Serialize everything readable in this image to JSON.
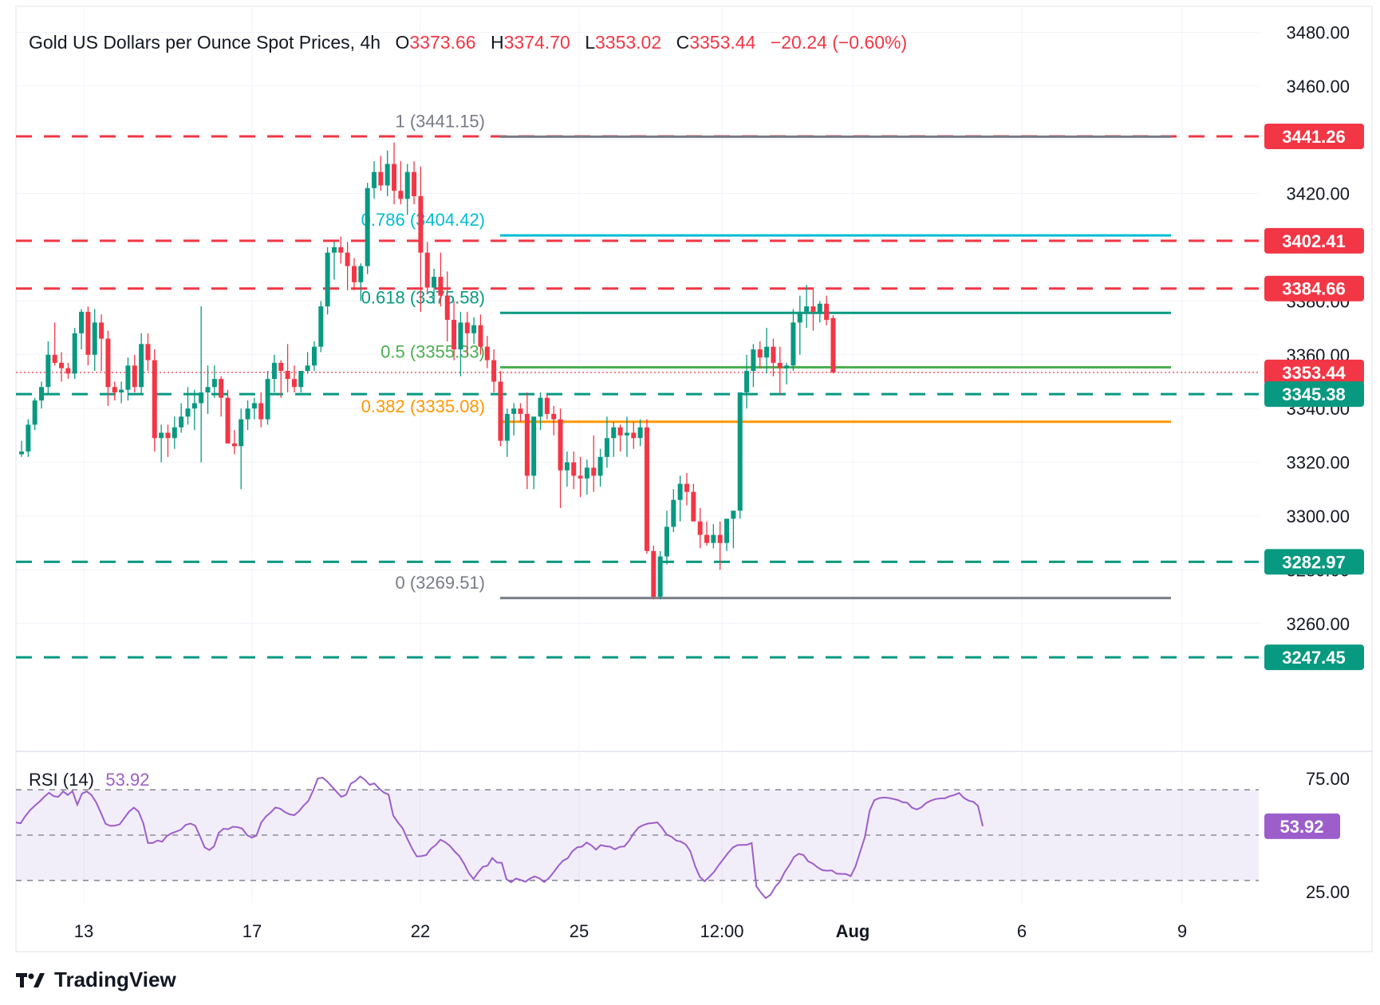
{
  "title": "Gold US Dollars per Ounce Spot Prices, 4h",
  "ohlc": {
    "o_label": "O",
    "o": "3373.66",
    "h_label": "H",
    "h": "3374.70",
    "l_label": "L",
    "l": "3353.02",
    "c_label": "C",
    "c": "3353.44",
    "change": "−20.24 (−0.60%)"
  },
  "colors": {
    "up": "#089981",
    "down": "#f23645",
    "resistance": "#f23645",
    "support": "#089981",
    "current_price": "#f23645",
    "rsi_line": "#9c5ecb",
    "fib_1": "#787b86",
    "fib_0786": "#00bcd4",
    "fib_0618": "#089981",
    "fib_05": "#4caf50",
    "fib_0382": "#ff9800",
    "fib_0": "#787b86",
    "grid": "#f0f3fa"
  },
  "chart_data": [
    {
      "type": "candlestick",
      "title": "Gold US Dollars per Ounce Spot Prices, 4h",
      "timeframe": "4h",
      "ylim": [
        3240,
        3490
      ],
      "y_ticks": [
        "3480.00",
        "3460.00",
        "3420.00",
        "3380.00",
        "3360.00",
        "3340.00",
        "3320.00",
        "3300.00",
        "3280.00",
        "3260.00"
      ],
      "x_ticks": [
        "13",
        "17",
        "22",
        "25",
        "12:00",
        "Aug",
        "6",
        "9"
      ],
      "horizontal_levels": [
        {
          "price": 3441.26,
          "label": "3441.26",
          "style": "dashed",
          "role": "resistance"
        },
        {
          "price": 3402.41,
          "label": "3402.41",
          "style": "dashed",
          "role": "resistance"
        },
        {
          "price": 3384.66,
          "label": "3384.66",
          "style": "dashed",
          "role": "resistance"
        },
        {
          "price": 3353.44,
          "label": "3353.44",
          "style": "dotted",
          "role": "current_price"
        },
        {
          "price": 3345.38,
          "label": "3345.38",
          "style": "dashed",
          "role": "support"
        },
        {
          "price": 3282.97,
          "label": "3282.97",
          "style": "dashed",
          "role": "support"
        },
        {
          "price": 3247.45,
          "label": "3247.45",
          "style": "dashed",
          "role": "support"
        }
      ],
      "fibonacci_retracement": [
        {
          "label": "1 (3441.15)",
          "price": 3441.15,
          "color_key": "fib_1"
        },
        {
          "label": "0.786 (3404.42)",
          "price": 3404.42,
          "color_key": "fib_0786"
        },
        {
          "label": "0.618 (3375.58)",
          "price": 3375.58,
          "color_key": "fib_0618"
        },
        {
          "label": "0.5 (3355.33)",
          "price": 3355.33,
          "color_key": "fib_05"
        },
        {
          "label": "0.382 (3335.08)",
          "price": 3335.08,
          "color_key": "fib_0382"
        },
        {
          "label": "0 (3269.51)",
          "price": 3269.51,
          "color_key": "fib_0"
        }
      ],
      "candles": [
        [
          3323,
          3328,
          3322,
          3324
        ],
        [
          3324,
          3336,
          3322,
          3334
        ],
        [
          3334,
          3344,
          3332,
          3343
        ],
        [
          3343,
          3350,
          3340,
          3348
        ],
        [
          3348,
          3365,
          3345,
          3360
        ],
        [
          3360,
          3372,
          3356,
          3357
        ],
        [
          3357,
          3361,
          3350,
          3355
        ],
        [
          3355,
          3357,
          3351,
          3353
        ],
        [
          3353,
          3370,
          3351,
          3368
        ],
        [
          3368,
          3377,
          3362,
          3376
        ],
        [
          3376,
          3378,
          3356,
          3360
        ],
        [
          3360,
          3377,
          3354,
          3372
        ],
        [
          3372,
          3375,
          3354,
          3366
        ],
        [
          3366,
          3369,
          3341,
          3348
        ],
        [
          3348,
          3350,
          3343,
          3346
        ],
        [
          3346,
          3350,
          3342,
          3347
        ],
        [
          3347,
          3359,
          3343,
          3356
        ],
        [
          3356,
          3360,
          3346,
          3348
        ],
        [
          3348,
          3368,
          3345,
          3364
        ],
        [
          3364,
          3368,
          3354,
          3358
        ],
        [
          3358,
          3362,
          3324,
          3329
        ],
        [
          3329,
          3334,
          3320,
          3331
        ],
        [
          3331,
          3334,
          3322,
          3329
        ],
        [
          3329,
          3337,
          3325,
          3333
        ],
        [
          3333,
          3342,
          3331,
          3337
        ],
        [
          3337,
          3348,
          3334,
          3340
        ],
        [
          3340,
          3347,
          3332,
          3342
        ],
        [
          3342,
          3378,
          3320,
          3346
        ],
        [
          3346,
          3356,
          3338,
          3348
        ],
        [
          3348,
          3356,
          3344,
          3351
        ],
        [
          3351,
          3352,
          3337,
          3344
        ],
        [
          3344,
          3347,
          3328,
          3327
        ],
        [
          3327,
          3332,
          3323,
          3326
        ],
        [
          3326,
          3340,
          3310,
          3336
        ],
        [
          3336,
          3343,
          3332,
          3340
        ],
        [
          3340,
          3344,
          3336,
          3342
        ],
        [
          3342,
          3346,
          3333,
          3336
        ],
        [
          3336,
          3354,
          3334,
          3351
        ],
        [
          3351,
          3360,
          3346,
          3357
        ],
        [
          3357,
          3358,
          3344,
          3354
        ],
        [
          3354,
          3364,
          3346,
          3351
        ],
        [
          3351,
          3356,
          3346,
          3348
        ],
        [
          3348,
          3353,
          3346,
          3354
        ],
        [
          3354,
          3361,
          3353,
          3356
        ],
        [
          3356,
          3365,
          3354,
          3363
        ],
        [
          3363,
          3380,
          3361,
          3378
        ],
        [
          3378,
          3400,
          3375,
          3398
        ],
        [
          3398,
          3402,
          3388,
          3400
        ],
        [
          3400,
          3404,
          3394,
          3398
        ],
        [
          3398,
          3402,
          3384,
          3393
        ],
        [
          3393,
          3396,
          3384,
          3387
        ],
        [
          3387,
          3394,
          3380,
          3393
        ],
        [
          3393,
          3424,
          3390,
          3422
        ],
        [
          3422,
          3432,
          3418,
          3428
        ],
        [
          3428,
          3434,
          3421,
          3423
        ],
        [
          3423,
          3436,
          3419,
          3431
        ],
        [
          3431,
          3439,
          3416,
          3421
        ],
        [
          3421,
          3432,
          3416,
          3418
        ],
        [
          3418,
          3431,
          3412,
          3428
        ],
        [
          3428,
          3432,
          3416,
          3419
        ],
        [
          3419,
          3430,
          3376,
          3398
        ],
        [
          3398,
          3402,
          3383,
          3385
        ],
        [
          3385,
          3392,
          3379,
          3389
        ],
        [
          3389,
          3398,
          3378,
          3382
        ],
        [
          3382,
          3391,
          3365,
          3373
        ],
        [
          3373,
          3380,
          3358,
          3362
        ],
        [
          3362,
          3376,
          3352,
          3372
        ],
        [
          3372,
          3376,
          3360,
          3368
        ],
        [
          3368,
          3374,
          3364,
          3371
        ],
        [
          3371,
          3375,
          3360,
          3363
        ],
        [
          3363,
          3367,
          3355,
          3358
        ],
        [
          3358,
          3362,
          3346,
          3350
        ],
        [
          3350,
          3354,
          3326,
          3328
        ],
        [
          3328,
          3340,
          3322,
          3338
        ],
        [
          3338,
          3342,
          3330,
          3340
        ],
        [
          3340,
          3342,
          3335,
          3338
        ],
        [
          3338,
          3346,
          3310,
          3315
        ],
        [
          3315,
          3335,
          3310,
          3337
        ],
        [
          3337,
          3346,
          3332,
          3344
        ],
        [
          3344,
          3345,
          3336,
          3338
        ],
        [
          3338,
          3341,
          3330,
          3336
        ],
        [
          3336,
          3340,
          3303,
          3317
        ],
        [
          3317,
          3324,
          3311,
          3320
        ],
        [
          3320,
          3324,
          3310,
          3315
        ],
        [
          3315,
          3322,
          3307,
          3314
        ],
        [
          3314,
          3321,
          3308,
          3318
        ],
        [
          3318,
          3330,
          3309,
          3315
        ],
        [
          3315,
          3325,
          3311,
          3322
        ],
        [
          3322,
          3337,
          3318,
          3329
        ],
        [
          3329,
          3335,
          3322,
          3333
        ],
        [
          3333,
          3334,
          3324,
          3330
        ],
        [
          3330,
          3337,
          3322,
          3331
        ],
        [
          3331,
          3335,
          3325,
          3329
        ],
        [
          3329,
          3336,
          3326,
          3333
        ],
        [
          3333,
          3336,
          3286,
          3287
        ],
        [
          3287,
          3289,
          3269,
          3270
        ],
        [
          3270,
          3287,
          3269,
          3285
        ],
        [
          3285,
          3302,
          3282,
          3296
        ],
        [
          3296,
          3310,
          3294,
          3306
        ],
        [
          3306,
          3315,
          3298,
          3312
        ],
        [
          3312,
          3316,
          3304,
          3309
        ],
        [
          3309,
          3312,
          3299,
          3298
        ],
        [
          3298,
          3303,
          3288,
          3293
        ],
        [
          3293,
          3298,
          3289,
          3290
        ],
        [
          3290,
          3297,
          3288,
          3293
        ],
        [
          3293,
          3298,
          3280,
          3290
        ],
        [
          3290,
          3299,
          3287,
          3299
        ],
        [
          3299,
          3302,
          3288,
          3302
        ],
        [
          3302,
          3345,
          3299,
          3346
        ],
        [
          3346,
          3360,
          3340,
          3354
        ],
        [
          3354,
          3364,
          3348,
          3362
        ],
        [
          3362,
          3365,
          3355,
          3359
        ],
        [
          3359,
          3370,
          3353,
          3363
        ],
        [
          3363,
          3366,
          3352,
          3357
        ],
        [
          3357,
          3363,
          3345,
          3355
        ],
        [
          3355,
          3357,
          3349,
          3356
        ],
        [
          3356,
          3377,
          3354,
          3372
        ],
        [
          3372,
          3382,
          3360,
          3376
        ],
        [
          3376,
          3386,
          3370,
          3378
        ],
        [
          3378,
          3385,
          3369,
          3376
        ],
        [
          3376,
          3380,
          3372,
          3379
        ],
        [
          3379,
          3382,
          3371,
          3373
        ],
        [
          3373.66,
          3374.7,
          3353.02,
          3353.44
        ]
      ]
    },
    {
      "type": "line",
      "title": "RSI (14)",
      "series": [
        {
          "name": "RSI (14)",
          "last": 53.92
        }
      ],
      "ylim": [
        20,
        80
      ],
      "y_ticks": [
        "75.00",
        "25.00"
      ],
      "bands": [
        70,
        50,
        30
      ],
      "values": [
        55.6,
        55.2,
        58.4,
        61.0,
        63.0,
        64.8,
        66.9,
        68.7,
        67.2,
        66.9,
        69.3,
        67.7,
        69.4,
        63.4,
        68.3,
        69.3,
        67.7,
        64.5,
        59.9,
        55.0,
        54.1,
        54.2,
        54.8,
        57.6,
        60.4,
        62.1,
        60.4,
        55.3,
        46.5,
        46.5,
        47.6,
        47.1,
        49.6,
        50.8,
        51.6,
        52.4,
        54.5,
        55.1,
        54.2,
        49.6,
        44.6,
        43.4,
        45.0,
        51.0,
        52.8,
        52.6,
        53.7,
        53.5,
        52.8,
        50.0,
        48.9,
        49.8,
        55.5,
        58.2,
        60.0,
        62.2,
        61.7,
        60.2,
        59.2,
        58.8,
        60.5,
        63.0,
        65.1,
        69.6,
        75.0,
        75.4,
        73.7,
        71.4,
        69.1,
        66.9,
        67.8,
        72.7,
        73.9,
        75.9,
        74.4,
        72.2,
        72.8,
        70.6,
        68.8,
        67.9,
        58.6,
        55.6,
        53.0,
        48.3,
        44.1,
        40.6,
        40.7,
        41.2,
        44.0,
        45.6,
        48.0,
        46.9,
        45.3,
        42.8,
        40.8,
        37.4,
        33.3,
        30.6,
        33.5,
        36.0,
        36.5,
        39.9,
        37.9,
        37.8,
        30.5,
        29.2,
        30.8,
        30.2,
        29.4,
        30.8,
        31.8,
        30.9,
        29.3,
        31.0,
        33.6,
        36.4,
        38.7,
        39.8,
        42.9,
        44.6,
        44.9,
        46.7,
        45.5,
        43.6,
        45.6,
        45.1,
        44.9,
        43.7,
        44.8,
        45.0,
        47.5,
        50.8,
        53.3,
        54.4,
        55.1,
        55.3,
        55.6,
        53.2,
        50.2,
        49.3,
        47.6,
        47.1,
        45.9,
        42.9,
        36.3,
        31.6,
        29.6,
        31.5,
        33.7,
        36.7,
        39.4,
        42.1,
        44.5,
        45.6,
        45.7,
        45.7,
        46.5,
        27.4,
        24.5,
        22.2,
        23.7,
        27.2,
        29.5,
        33.7,
        36.8,
        40.4,
        41.8,
        41.2,
        38.4,
        37.4,
        35.7,
        34.5,
        34.3,
        34.4,
        33.0,
        32.9,
        32.8,
        31.9,
        36.1,
        42.6,
        49.1,
        60.6,
        65.4,
        66.3,
        66.6,
        66.4,
        66.0,
        65.5,
        64.5,
        64.3,
        62.1,
        61.3,
        62.3,
        64.2,
        65.2,
        65.9,
        66.2,
        66.3,
        67.2,
        67.7,
        68.6,
        66.4,
        65.2,
        64.7,
        62.9,
        53.92
      ]
    }
  ],
  "price_labels": {
    "r1": "3441.26",
    "r2": "3402.41",
    "r3": "3384.66",
    "cur": "3353.44",
    "s1": "3345.38",
    "s2": "3282.97",
    "s3": "3247.45"
  },
  "rsi": {
    "label": "RSI (14)",
    "value": "53.92",
    "pill": "53.92"
  },
  "brand": {
    "name": "TradingView"
  }
}
